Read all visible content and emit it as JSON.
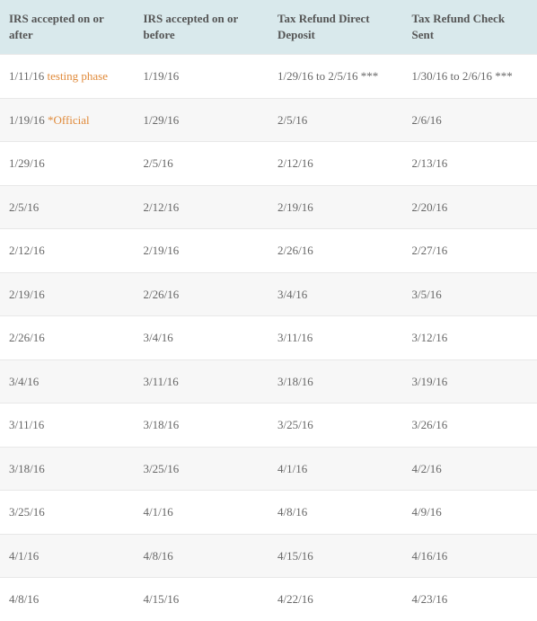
{
  "table": {
    "headers": [
      "IRS accepted on or after",
      "IRS accepted on or before",
      "Tax Refund Direct Deposit",
      "Tax Refund Check Sent"
    ],
    "rows": [
      {
        "c0": "1/11/16 ",
        "c0_note": "testing phase",
        "c1": "1/19/16",
        "c2": "1/29/16 to 2/5/16 ***",
        "c3": "1/30/16 to 2/6/16 ***",
        "alt": false
      },
      {
        "c0": "1/19/16 ",
        "c0_note": "*Official",
        "c1": "1/29/16",
        "c2": "2/5/16",
        "c3": "2/6/16",
        "alt": true
      },
      {
        "c0": "1/29/16",
        "c0_note": "",
        "c1": "2/5/16",
        "c2": "2/12/16",
        "c3": "2/13/16",
        "alt": false
      },
      {
        "c0": "2/5/16",
        "c0_note": "",
        "c1": "2/12/16",
        "c2": "2/19/16",
        "c3": "2/20/16",
        "alt": true
      },
      {
        "c0": "2/12/16",
        "c0_note": "",
        "c1": "2/19/16",
        "c2": "2/26/16",
        "c3": "2/27/16",
        "alt": false
      },
      {
        "c0": "2/19/16",
        "c0_note": "",
        "c1": "2/26/16",
        "c2": "3/4/16",
        "c3": "3/5/16",
        "alt": true
      },
      {
        "c0": "2/26/16",
        "c0_note": "",
        "c1": "3/4/16",
        "c2": "3/11/16",
        "c3": "3/12/16",
        "alt": false
      },
      {
        "c0": "3/4/16",
        "c0_note": "",
        "c1": "3/11/16",
        "c2": "3/18/16",
        "c3": "3/19/16",
        "alt": true
      },
      {
        "c0": "3/11/16",
        "c0_note": "",
        "c1": "3/18/16",
        "c2": "3/25/16",
        "c3": "3/26/16",
        "alt": false
      },
      {
        "c0": "3/18/16",
        "c0_note": "",
        "c1": "3/25/16",
        "c2": "4/1/16",
        "c3": "4/2/16",
        "alt": true
      },
      {
        "c0": "3/25/16",
        "c0_note": "",
        "c1": "4/1/16",
        "c2": "4/8/16",
        "c3": "4/9/16",
        "alt": false
      },
      {
        "c0": "4/1/16",
        "c0_note": "",
        "c1": "4/8/16",
        "c2": "4/15/16",
        "c3": "4/16/16",
        "alt": true
      },
      {
        "c0": "4/8/16",
        "c0_note": "",
        "c1": "4/15/16",
        "c2": "4/22/16",
        "c3": "4/23/16",
        "alt": false
      }
    ]
  }
}
